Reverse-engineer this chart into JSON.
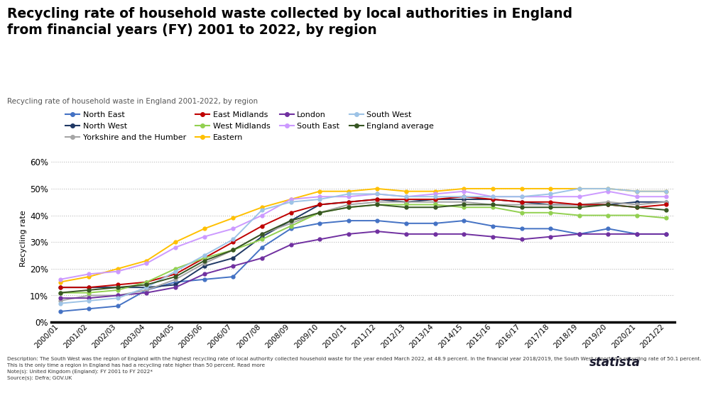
{
  "title": "Recycling rate of household waste collected by local authorities in England\nfrom financial years (FY) 2001 to 2022, by region",
  "subtitle": "Recycling rate of household waste in England 2001-2022, by region",
  "ylabel": "Recycling rate",
  "years": [
    "2000/01",
    "2001/02",
    "2002/03",
    "2003/04",
    "2004/05",
    "2005/06",
    "2006/07",
    "2007/08",
    "2008/09",
    "2009/10",
    "2010/11",
    "2011/12",
    "2012/13",
    "2013/14",
    "2014/15",
    "2015/16",
    "2016/17",
    "2017/18",
    "2018/19",
    "2019/20",
    "2020/21",
    "2021/22"
  ],
  "series": {
    "North East": [
      4,
      5,
      6,
      12,
      15,
      16,
      17,
      28,
      35,
      37,
      38,
      38,
      37,
      37,
      38,
      36,
      35,
      35,
      33,
      35,
      33,
      33
    ],
    "North West": [
      13,
      13,
      13,
      13,
      14,
      21,
      24,
      32,
      38,
      44,
      45,
      46,
      45,
      46,
      46,
      46,
      45,
      44,
      44,
      44,
      45,
      45
    ],
    "Yorkshire and the Humber": [
      8,
      10,
      10,
      12,
      16,
      22,
      27,
      33,
      37,
      41,
      44,
      45,
      45,
      45,
      45,
      44,
      44,
      44,
      44,
      45,
      44,
      45
    ],
    "East Midlands": [
      13,
      13,
      14,
      15,
      18,
      24,
      30,
      36,
      41,
      44,
      45,
      46,
      46,
      46,
      47,
      46,
      45,
      45,
      44,
      44,
      43,
      44
    ],
    "West Midlands": [
      11,
      11,
      12,
      15,
      20,
      24,
      27,
      31,
      36,
      41,
      43,
      44,
      44,
      44,
      43,
      43,
      41,
      41,
      40,
      40,
      40,
      39
    ],
    "Eastern": [
      15,
      17,
      20,
      23,
      30,
      35,
      39,
      43,
      46,
      49,
      49,
      50,
      49,
      49,
      50,
      50,
      50,
      50,
      50,
      50,
      49,
      49
    ],
    "London": [
      9,
      9,
      10,
      11,
      13,
      18,
      21,
      24,
      29,
      31,
      33,
      34,
      33,
      33,
      33,
      32,
      31,
      32,
      33,
      33,
      33,
      33
    ],
    "South East": [
      16,
      18,
      19,
      22,
      28,
      32,
      35,
      40,
      46,
      47,
      47,
      48,
      47,
      48,
      49,
      47,
      47,
      47,
      47,
      49,
      47,
      47
    ],
    "South West": [
      7,
      8,
      9,
      13,
      19,
      25,
      31,
      42,
      45,
      46,
      48,
      48,
      47,
      47,
      47,
      47,
      47,
      48,
      50,
      50,
      49,
      49
    ],
    "England average": [
      11,
      12,
      13,
      14,
      17,
      23,
      27,
      33,
      38,
      41,
      43,
      44,
      43,
      43,
      44,
      44,
      43,
      43,
      43,
      44,
      43,
      42
    ]
  },
  "colors": {
    "North East": "#4472C4",
    "North West": "#1F3864",
    "Yorkshire and the Humber": "#A5A5A5",
    "East Midlands": "#C00000",
    "West Midlands": "#92D050",
    "Eastern": "#FFC000",
    "London": "#7030A0",
    "South East": "#CC99FF",
    "South West": "#9DC3E6",
    "England average": "#375623"
  },
  "legend_order": [
    "North East",
    "North West",
    "Yorkshire and the Humber",
    "East Midlands",
    "West Midlands",
    "Eastern",
    "London",
    "South East",
    "South West",
    "England average"
  ],
  "yticks": [
    0,
    10,
    20,
    30,
    40,
    50,
    60
  ],
  "ylim": [
    0,
    63
  ],
  "background_color": "#ffffff",
  "footer_line1": "Description: The South West was the region of England with the highest recycling rate of local authority collected household waste for the year ended March 2022, at 48.9 percent. In the financial year 2018/2019, the South West reported a recycling rate of 50.1 percent.",
  "footer_line2": "This is the only time a region in England has had a recycling rate higher than 50 percent. Read more",
  "footer_line3": "Note(s): United Kingdom (England): FY 2001 to FY 2022*",
  "footer_line4": "Source(s): Defra; GOV.UK"
}
